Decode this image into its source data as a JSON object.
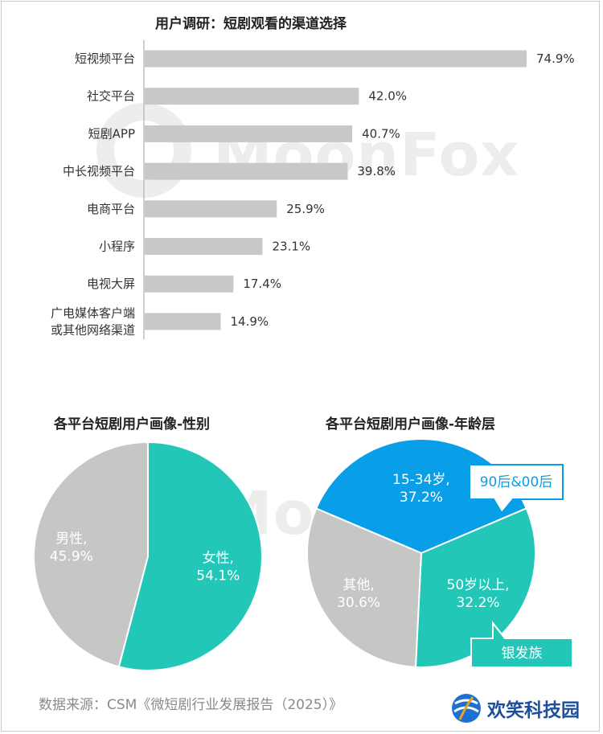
{
  "watermark": "MoonFox",
  "bar_chart": {
    "title": "用户调研：短剧观看的渠道选择"
  },
  "gender_chart": {
    "title": "各平台短剧用户画像-性别"
  },
  "age_chart": {
    "title": "各平台短剧用户画像-年龄层",
    "callouts": [
      "90后&00后",
      "银发族"
    ]
  },
  "footer": {
    "source": "数据来源：CSM《微短剧行业发展报告（2025）》",
    "brand": "欢笑科技园"
  },
  "colors": {
    "bar": "#c8c8c8",
    "female": "#22c7b8",
    "male": "#c6c6c6",
    "age_young": "#099fe8",
    "age_senior": "#22c7b8",
    "age_other": "#c6c6c6"
  },
  "chart_data": [
    {
      "type": "bar",
      "orientation": "horizontal",
      "title": "用户调研：短剧观看的渠道选择",
      "categories": [
        "短视频平台",
        "社交平台",
        "短剧APP",
        "中长视频平台",
        "电商平台",
        "小程序",
        "电视大屏",
        "广电媒体客户端\n或其他网络渠道"
      ],
      "values": [
        74.9,
        42.0,
        40.7,
        39.8,
        25.9,
        23.1,
        17.4,
        14.9
      ],
      "value_labels": [
        "74.9%",
        "42.0%",
        "40.7%",
        "39.8%",
        "25.9%",
        "23.1%",
        "17.4%",
        "14.9%"
      ],
      "xlim": [
        0,
        80
      ],
      "grid": false
    },
    {
      "type": "pie",
      "title": "各平台短剧用户画像-性别",
      "slices": [
        {
          "label": "女性",
          "value": 54.1,
          "text": "54.1%"
        },
        {
          "label": "男性",
          "value": 45.9,
          "text": "45.9%"
        }
      ]
    },
    {
      "type": "pie",
      "title": "各平台短剧用户画像-年龄层",
      "slices": [
        {
          "label": "15-34岁",
          "value": 37.2,
          "text": "37.2%"
        },
        {
          "label": "50岁以上",
          "value": 32.2,
          "text": "32.2%"
        },
        {
          "label": "其他",
          "value": 30.6,
          "text": "30.6%"
        }
      ]
    }
  ]
}
